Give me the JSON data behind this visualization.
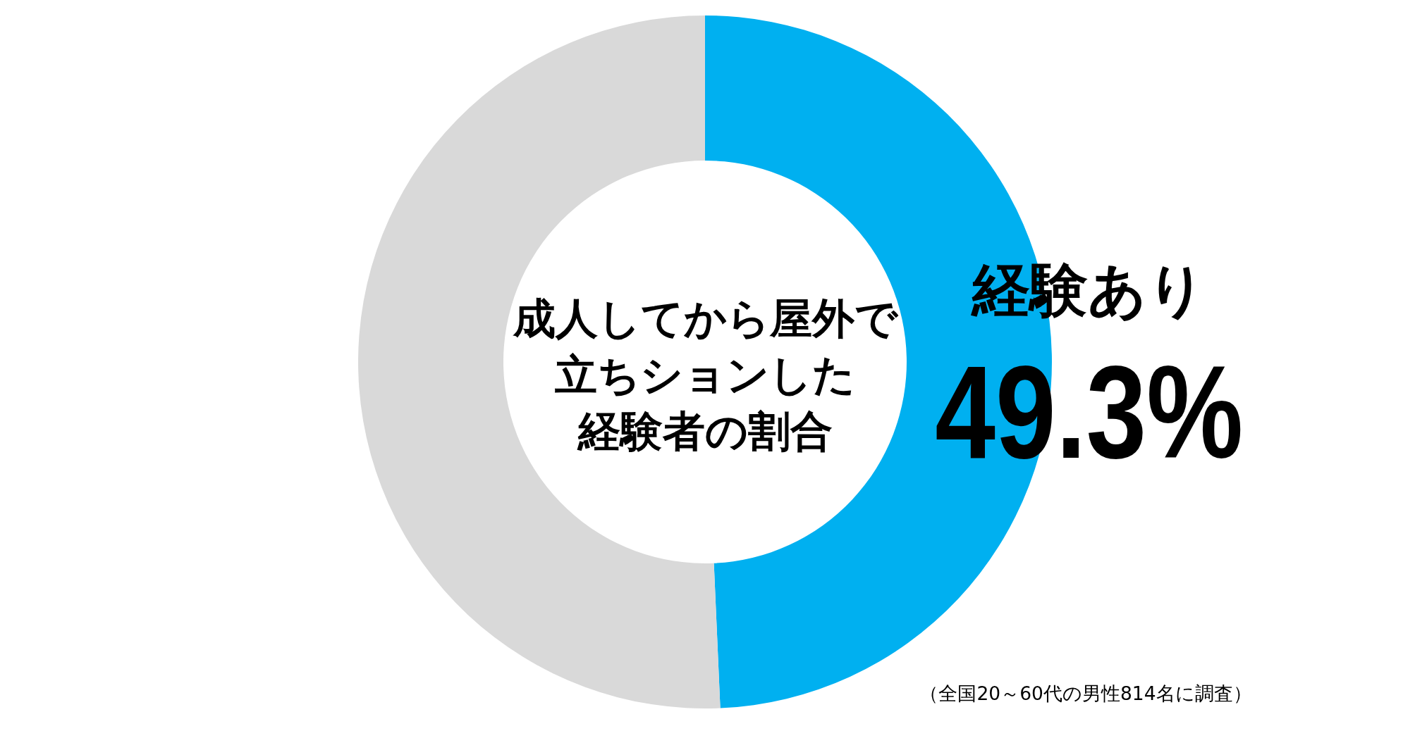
{
  "chart_data": {
    "type": "donut",
    "title": "成人してから屋外で立ちションした経験者の割合",
    "categories": [
      "経験あり",
      null
    ],
    "values": [
      49.3,
      50.7
    ],
    "colors": [
      "#00b0f0",
      "#d9d9d9"
    ],
    "value_labels": [
      "49.3%",
      null
    ],
    "annotations": [
      "（全国20～60代の男性814名に調査）"
    ]
  }
}
